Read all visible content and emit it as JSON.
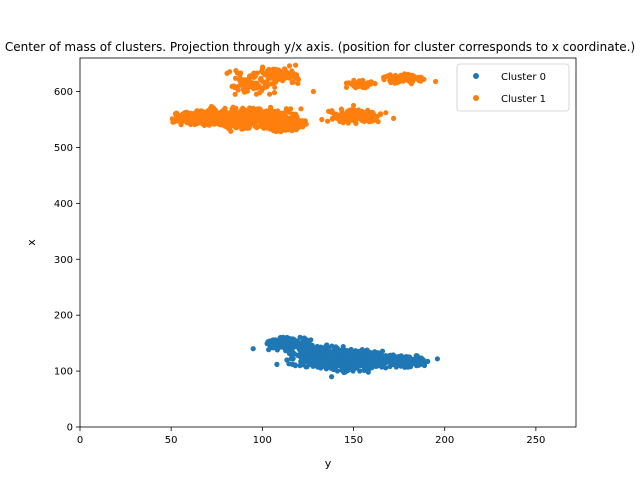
{
  "chart_data": {
    "type": "scatter",
    "title": "Center of mass of clusters. Projection through y/x axis. (position for cluster corresponds to x coordinate.)",
    "xlabel": "y",
    "ylabel": "x",
    "xlim": [
      0,
      272
    ],
    "ylim": [
      0,
      660
    ],
    "xticks": [
      0,
      50,
      100,
      150,
      200,
      250
    ],
    "yticks": [
      0,
      100,
      200,
      300,
      400,
      500,
      600
    ],
    "grid": false,
    "legend_position": "top-right",
    "series": [
      {
        "name": "Cluster 0",
        "color": "#1f77b4",
        "blobs": [
          {
            "x": [
              100,
              130
            ],
            "y": [
              135,
              162
            ],
            "n": 140
          },
          {
            "x": [
              112,
              150
            ],
            "y": [
              105,
              150
            ],
            "n": 260
          },
          {
            "x": [
              125,
              162
            ],
            "y": [
              95,
              140
            ],
            "n": 220
          },
          {
            "x": [
              145,
              170
            ],
            "y": [
              100,
              140
            ],
            "n": 160
          },
          {
            "x": [
              162,
              192
            ],
            "y": [
              105,
              130
            ],
            "n": 160
          }
        ],
        "points": [
          [
            95,
            140
          ],
          [
            196,
            122
          ],
          [
            138,
            90
          ],
          [
            108,
            112
          ],
          [
            110,
            160
          ]
        ]
      },
      {
        "name": "Cluster 1",
        "color": "#ff7f0e",
        "blobs": [
          {
            "x": [
              50,
              80
            ],
            "y": [
              538,
              568
            ],
            "n": 220
          },
          {
            "x": [
              65,
              100
            ],
            "y": [
              528,
              575
            ],
            "n": 200
          },
          {
            "x": [
              82,
              122
            ],
            "y": [
              530,
              575
            ],
            "n": 230
          },
          {
            "x": [
              100,
              125
            ],
            "y": [
              526,
              560
            ],
            "n": 150
          },
          {
            "x": [
              132,
              168
            ],
            "y": [
              542,
              570
            ],
            "n": 170
          },
          {
            "x": [
              80,
              110
            ],
            "y": [
              590,
              640
            ],
            "n": 80
          },
          {
            "x": [
              98,
              122
            ],
            "y": [
              612,
              648
            ],
            "n": 70
          },
          {
            "x": [
              145,
              162
            ],
            "y": [
              605,
              622
            ],
            "n": 45
          },
          {
            "x": [
              165,
              190
            ],
            "y": [
              613,
              633
            ],
            "n": 75
          }
        ],
        "points": [
          [
            195,
            618
          ],
          [
            150,
            575
          ],
          [
            172,
            552
          ],
          [
            115,
            624
          ],
          [
            128,
            600
          ],
          [
            83,
            560
          ]
        ]
      }
    ]
  }
}
